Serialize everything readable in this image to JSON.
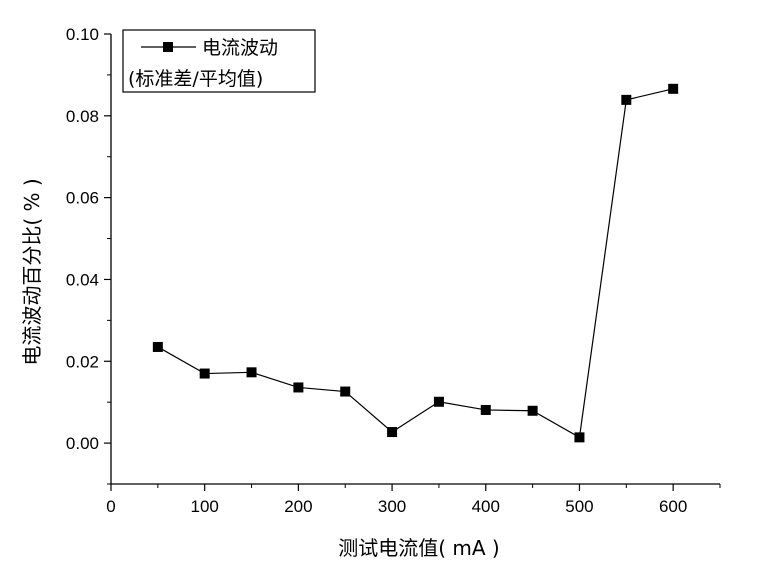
{
  "chart_data": {
    "type": "line",
    "title": "",
    "xlabel": "测试电流值( mA )",
    "ylabel": "电流波动百分比( % )",
    "xlim": [
      0,
      650
    ],
    "ylim": [
      -0.01,
      0.1
    ],
    "x_ticks": [
      0,
      100,
      200,
      300,
      400,
      500,
      600
    ],
    "x_tick_labels": [
      "0",
      "100",
      "200",
      "300",
      "400",
      "500",
      "600"
    ],
    "y_ticks": [
      0.0,
      0.02,
      0.04,
      0.06,
      0.08,
      0.1
    ],
    "y_tick_labels": [
      "0.00",
      "0.02",
      "0.04",
      "0.06",
      "0.08",
      "0.10"
    ],
    "grid": false,
    "legend_position": "top-left",
    "legend": {
      "line1": "电流波动",
      "line2": "(标准差/平均值)"
    },
    "series": [
      {
        "name": "电流波动 (标准差/平均值)",
        "marker": "square",
        "color": "#000000",
        "x": [
          50,
          100,
          150,
          200,
          250,
          300,
          350,
          400,
          450,
          500,
          550,
          600
        ],
        "y": [
          0.0235,
          0.017,
          0.0173,
          0.0136,
          0.0126,
          0.0027,
          0.0101,
          0.0081,
          0.0079,
          0.0014,
          0.0839,
          0.0866
        ]
      }
    ]
  }
}
